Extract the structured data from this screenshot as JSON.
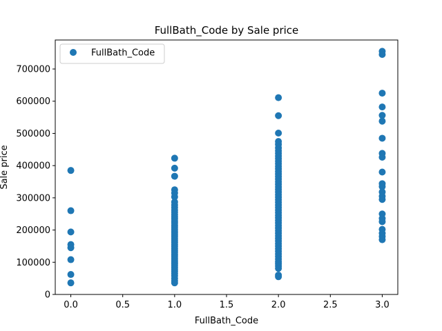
{
  "chart_data": {
    "type": "scatter",
    "title": "FullBath_Code by Sale price",
    "xlabel": "FullBath_Code",
    "ylabel": "Sale price",
    "xlim": [
      -0.15,
      3.15
    ],
    "ylim": [
      0,
      790000
    ],
    "xticks": [
      0.0,
      0.5,
      1.0,
      1.5,
      2.0,
      2.5,
      3.0
    ],
    "xtick_labels": [
      "0.0",
      "0.5",
      "1.0",
      "1.5",
      "2.0",
      "2.5",
      "3.0"
    ],
    "yticks": [
      0,
      100000,
      200000,
      300000,
      400000,
      500000,
      600000,
      700000
    ],
    "ytick_labels": [
      "0",
      "100000",
      "200000",
      "300000",
      "400000",
      "500000",
      "600000",
      "700000"
    ],
    "grid": false,
    "legend_position": "top-left",
    "color": "#1f77b4",
    "series": [
      {
        "name": "FullBath_Code",
        "points": [
          {
            "x": 0,
            "y": 385000
          },
          {
            "x": 0,
            "y": 260000
          },
          {
            "x": 0,
            "y": 194000
          },
          {
            "x": 0,
            "y": 155000
          },
          {
            "x": 0,
            "y": 145000
          },
          {
            "x": 0,
            "y": 108000
          },
          {
            "x": 0,
            "y": 62000
          },
          {
            "x": 0,
            "y": 36000
          },
          {
            "x": 1,
            "y": 423000
          },
          {
            "x": 1,
            "y": 392000
          },
          {
            "x": 1,
            "y": 367000
          },
          {
            "x": 1,
            "y": 325000
          },
          {
            "x": 1,
            "y": 315000
          },
          {
            "x": 1,
            "y": 303000
          },
          {
            "x": 1,
            "y": 287000
          },
          {
            "x": 1,
            "y": 278000
          },
          {
            "x": 1,
            "y": 270000
          },
          {
            "x": 1,
            "y": 262000
          },
          {
            "x": 1,
            "y": 255000
          },
          {
            "x": 1,
            "y": 248000
          },
          {
            "x": 1,
            "y": 241000
          },
          {
            "x": 1,
            "y": 235000
          },
          {
            "x": 1,
            "y": 228000
          },
          {
            "x": 1,
            "y": 222000
          },
          {
            "x": 1,
            "y": 215000
          },
          {
            "x": 1,
            "y": 209000
          },
          {
            "x": 1,
            "y": 203000
          },
          {
            "x": 1,
            "y": 197000
          },
          {
            "x": 1,
            "y": 191000
          },
          {
            "x": 1,
            "y": 185000
          },
          {
            "x": 1,
            "y": 179000
          },
          {
            "x": 1,
            "y": 173000
          },
          {
            "x": 1,
            "y": 167000
          },
          {
            "x": 1,
            "y": 161000
          },
          {
            "x": 1,
            "y": 155000
          },
          {
            "x": 1,
            "y": 149000
          },
          {
            "x": 1,
            "y": 143000
          },
          {
            "x": 1,
            "y": 137000
          },
          {
            "x": 1,
            "y": 131000
          },
          {
            "x": 1,
            "y": 125000
          },
          {
            "x": 1,
            "y": 119000
          },
          {
            "x": 1,
            "y": 113000
          },
          {
            "x": 1,
            "y": 107000
          },
          {
            "x": 1,
            "y": 101000
          },
          {
            "x": 1,
            "y": 95000
          },
          {
            "x": 1,
            "y": 89000
          },
          {
            "x": 1,
            "y": 83000
          },
          {
            "x": 1,
            "y": 77000
          },
          {
            "x": 1,
            "y": 71000
          },
          {
            "x": 1,
            "y": 65000
          },
          {
            "x": 1,
            "y": 58000
          },
          {
            "x": 1,
            "y": 50000
          },
          {
            "x": 1,
            "y": 42000
          },
          {
            "x": 1,
            "y": 36000
          },
          {
            "x": 2,
            "y": 611000
          },
          {
            "x": 2,
            "y": 555000
          },
          {
            "x": 2,
            "y": 501000
          },
          {
            "x": 2,
            "y": 475000
          },
          {
            "x": 2,
            "y": 466000
          },
          {
            "x": 2,
            "y": 455000
          },
          {
            "x": 2,
            "y": 446000
          },
          {
            "x": 2,
            "y": 438000
          },
          {
            "x": 2,
            "y": 430000
          },
          {
            "x": 2,
            "y": 422000
          },
          {
            "x": 2,
            "y": 414000
          },
          {
            "x": 2,
            "y": 406000
          },
          {
            "x": 2,
            "y": 398000
          },
          {
            "x": 2,
            "y": 390000
          },
          {
            "x": 2,
            "y": 382000
          },
          {
            "x": 2,
            "y": 374000
          },
          {
            "x": 2,
            "y": 366000
          },
          {
            "x": 2,
            "y": 358000
          },
          {
            "x": 2,
            "y": 350000
          },
          {
            "x": 2,
            "y": 342000
          },
          {
            "x": 2,
            "y": 334000
          },
          {
            "x": 2,
            "y": 326000
          },
          {
            "x": 2,
            "y": 318000
          },
          {
            "x": 2,
            "y": 310000
          },
          {
            "x": 2,
            "y": 302000
          },
          {
            "x": 2,
            "y": 294000
          },
          {
            "x": 2,
            "y": 286000
          },
          {
            "x": 2,
            "y": 278000
          },
          {
            "x": 2,
            "y": 270000
          },
          {
            "x": 2,
            "y": 262000
          },
          {
            "x": 2,
            "y": 254000
          },
          {
            "x": 2,
            "y": 246000
          },
          {
            "x": 2,
            "y": 238000
          },
          {
            "x": 2,
            "y": 230000
          },
          {
            "x": 2,
            "y": 222000
          },
          {
            "x": 2,
            "y": 214000
          },
          {
            "x": 2,
            "y": 206000
          },
          {
            "x": 2,
            "y": 198000
          },
          {
            "x": 2,
            "y": 190000
          },
          {
            "x": 2,
            "y": 182000
          },
          {
            "x": 2,
            "y": 174000
          },
          {
            "x": 2,
            "y": 166000
          },
          {
            "x": 2,
            "y": 158000
          },
          {
            "x": 2,
            "y": 150000
          },
          {
            "x": 2,
            "y": 142000
          },
          {
            "x": 2,
            "y": 134000
          },
          {
            "x": 2,
            "y": 126000
          },
          {
            "x": 2,
            "y": 118000
          },
          {
            "x": 2,
            "y": 110000
          },
          {
            "x": 2,
            "y": 102000
          },
          {
            "x": 2,
            "y": 95000
          },
          {
            "x": 2,
            "y": 88000
          },
          {
            "x": 2,
            "y": 81000
          },
          {
            "x": 2,
            "y": 60000
          },
          {
            "x": 2,
            "y": 55000
          },
          {
            "x": 3,
            "y": 755000
          },
          {
            "x": 3,
            "y": 745000
          },
          {
            "x": 3,
            "y": 625000
          },
          {
            "x": 3,
            "y": 582000
          },
          {
            "x": 3,
            "y": 556000
          },
          {
            "x": 3,
            "y": 538000
          },
          {
            "x": 3,
            "y": 485000
          },
          {
            "x": 3,
            "y": 438000
          },
          {
            "x": 3,
            "y": 426000
          },
          {
            "x": 3,
            "y": 380000
          },
          {
            "x": 3,
            "y": 344000
          },
          {
            "x": 3,
            "y": 335000
          },
          {
            "x": 3,
            "y": 318000
          },
          {
            "x": 3,
            "y": 305000
          },
          {
            "x": 3,
            "y": 295000
          },
          {
            "x": 3,
            "y": 250000
          },
          {
            "x": 3,
            "y": 236000
          },
          {
            "x": 3,
            "y": 226000
          },
          {
            "x": 3,
            "y": 202000
          },
          {
            "x": 3,
            "y": 190000
          },
          {
            "x": 3,
            "y": 180000
          },
          {
            "x": 3,
            "y": 170000
          }
        ]
      }
    ]
  }
}
